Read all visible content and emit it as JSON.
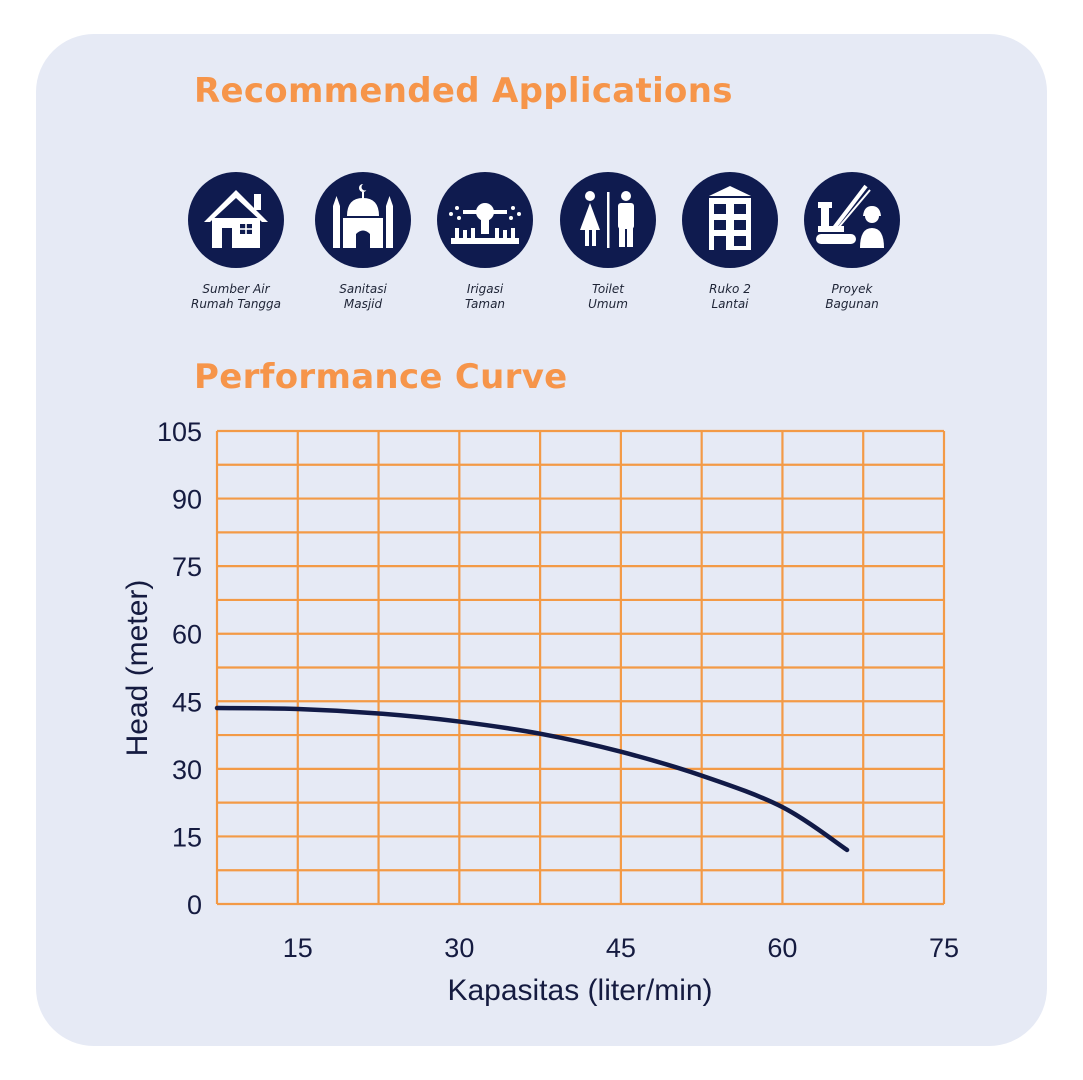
{
  "sections": {
    "applications_title": "Recommended Applications",
    "curve_title": "Performance Curve"
  },
  "applications": [
    {
      "icon": "house-icon",
      "line1": "Sumber Air",
      "line2": "Rumah Tangga"
    },
    {
      "icon": "mosque-icon",
      "line1": "Sanitasi",
      "line2": "Masjid"
    },
    {
      "icon": "sprinkler-icon",
      "line1": "Irigasi",
      "line2": "Taman"
    },
    {
      "icon": "restroom-icon",
      "line1": "Toilet",
      "line2": "Umum"
    },
    {
      "icon": "building-icon",
      "line1": "Ruko 2",
      "line2": "Lantai"
    },
    {
      "icon": "construction-icon",
      "line1": "Proyek",
      "line2": "Bagunan"
    }
  ],
  "colors": {
    "accent": "#f6954a",
    "navy": "#0f1b4f",
    "background": "#e6eaf5",
    "grid": "#f39a46"
  },
  "chart_data": {
    "type": "line",
    "xlabel": "Kapasitas (liter/min)",
    "ylabel": "Head (meter)",
    "xlim": [
      7.5,
      75
    ],
    "ylim": [
      0,
      105
    ],
    "x_ticks": [
      15,
      30,
      45,
      60,
      75
    ],
    "y_ticks": [
      0,
      15,
      30,
      45,
      60,
      75,
      90,
      105
    ],
    "x_grid_step": 7.5,
    "y_grid_step": 7.5,
    "grid": true,
    "series": [
      {
        "x": [
          7.5,
          15,
          22.5,
          30,
          37.5,
          45,
          52.5,
          60,
          66
        ],
        "y": [
          43.5,
          43.3,
          42.3,
          40.5,
          37.8,
          33.8,
          28.5,
          21.5,
          12
        ]
      }
    ]
  }
}
